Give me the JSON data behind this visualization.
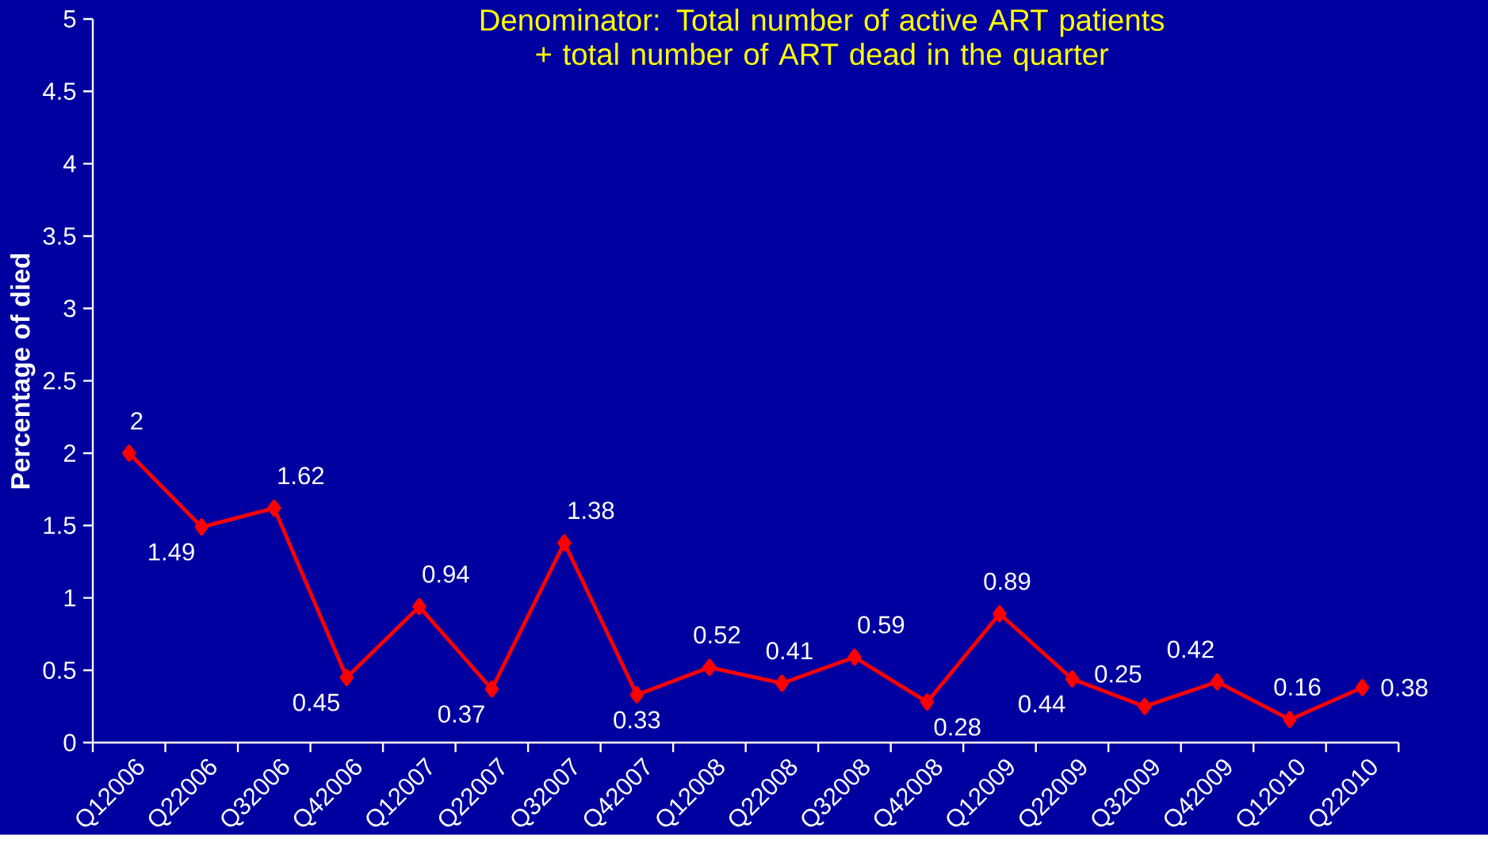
{
  "chart_data": {
    "type": "line",
    "title": "Denominator: Total number of active ART patients + total number of ART dead in the quarter",
    "ylabel": "Percentage of died",
    "categories": [
      "Q12006",
      "Q22006",
      "Q32006",
      "Q42006",
      "Q12007",
      "Q22007",
      "Q32007",
      "Q42007",
      "Q12008",
      "Q22008",
      "Q32008",
      "Q42008",
      "Q12009",
      "Q22009",
      "Q32009",
      "Q42009",
      "Q12010",
      "Q22010"
    ],
    "series": [
      {
        "color": "#ff0000",
        "values": [
          2,
          1.49,
          1.62,
          0.45,
          0.94,
          0.37,
          1.38,
          0.33,
          0.52,
          0.41,
          0.59,
          0.28,
          0.89,
          0.44,
          0.25,
          0.42,
          0.16,
          0.38
        ]
      }
    ],
    "ylim": [
      0,
      5
    ],
    "yticks": [
      0,
      0.5,
      1,
      1.5,
      2,
      2.5,
      3,
      3.5,
      4,
      4.5,
      5
    ],
    "data_labels": true,
    "marker": "diamond",
    "line_style": "solid",
    "grid": false,
    "legend": false
  }
}
